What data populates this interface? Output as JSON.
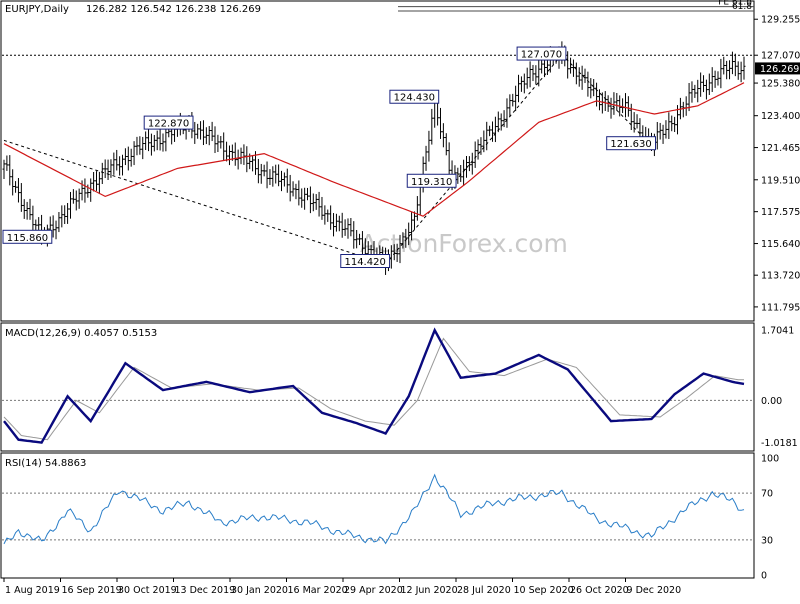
{
  "chart_data": [
    {
      "type": "line",
      "panel": "price",
      "title": "EURJPY,Daily",
      "ohlc_label": "126.282 126.542 126.238 126.269",
      "watermark": "ActionForex.com",
      "ylim": [
        111.0,
        130.3
      ],
      "y_ticks": [
        "129.255",
        "127.070",
        "125.380",
        "123.400",
        "121.465",
        "119.510",
        "117.575",
        "115.640",
        "113.720",
        "111.795"
      ],
      "x_ticks": [
        "1 Aug 2019",
        "16 Sep 2019",
        "30 Oct 2019",
        "13 Dec 2019",
        "30 Jan 2020",
        "16 Mar 2020",
        "29 Apr 2020",
        "12 Jun 2020",
        "28 Jul 2020",
        "10 Sep 2020",
        "26 Oct 2020",
        "9 Dec 2020"
      ],
      "current_price_label": "126.269",
      "resistance": {
        "value": 127.07,
        "label": "127.070"
      },
      "fib_levels": [
        {
          "value": 130.02,
          "label": "FE 61.8"
        },
        {
          "value": 129.75,
          "label": "61.8"
        }
      ],
      "pivot_labels": [
        {
          "bar": 13,
          "value": 116.02,
          "label": "115.860"
        },
        {
          "bar": 64,
          "value": 122.95,
          "label": "122.870"
        },
        {
          "bar": 132,
          "value": 114.55,
          "label": "114.420"
        },
        {
          "bar": 149,
          "value": 124.52,
          "label": "124.430"
        },
        {
          "bar": 155,
          "value": 119.42,
          "label": "119.310"
        },
        {
          "bar": 193,
          "value": 127.14,
          "label": "127.070"
        },
        {
          "bar": 224,
          "value": 121.7,
          "label": "121.630"
        }
      ],
      "price_path": [
        [
          0,
          120.3
        ],
        [
          13,
          116.0
        ],
        [
          30,
          119.3
        ],
        [
          45,
          121.3
        ],
        [
          64,
          122.9
        ],
        [
          80,
          121.0
        ],
        [
          100,
          119.0
        ],
        [
          118,
          116.5
        ],
        [
          132,
          114.4
        ],
        [
          142,
          117.0
        ],
        [
          149,
          124.4
        ],
        [
          155,
          119.3
        ],
        [
          170,
          122.8
        ],
        [
          182,
          126.0
        ],
        [
          193,
          127.1
        ],
        [
          205,
          124.5
        ],
        [
          215,
          123.8
        ],
        [
          224,
          121.6
        ],
        [
          232,
          123.3
        ],
        [
          240,
          125.1
        ],
        [
          252,
          126.4
        ],
        [
          256,
          126.3
        ]
      ],
      "ma_path": [
        [
          0,
          121.7
        ],
        [
          35,
          118.5
        ],
        [
          60,
          120.2
        ],
        [
          90,
          121.1
        ],
        [
          115,
          119.3
        ],
        [
          145,
          117.3
        ],
        [
          160,
          119.3
        ],
        [
          185,
          123.0
        ],
        [
          205,
          124.3
        ],
        [
          225,
          123.5
        ],
        [
          240,
          124.0
        ],
        [
          256,
          125.4
        ]
      ],
      "trendlines": [
        {
          "from": [
            0,
            121.9
          ],
          "to": [
            132,
            114.4
          ]
        },
        {
          "from": [
            132,
            114.4
          ],
          "to": [
            193,
            127.1
          ]
        },
        {
          "from": [
            193,
            127.1
          ],
          "to": [
            224,
            121.6
          ]
        }
      ]
    },
    {
      "type": "line",
      "panel": "macd",
      "title": "MACD(12,26,9) 0.4057 0.5153",
      "ylim": [
        -1.2,
        1.85
      ],
      "y_ticks": [
        "1.7041",
        "0.00",
        "-1.0181"
      ],
      "series": [
        {
          "name": "MACD",
          "color": "#0a0a7e",
          "values": [
            [
              0,
              -0.5
            ],
            [
              5,
              -0.95
            ],
            [
              13,
              -1.02
            ],
            [
              22,
              0.1
            ],
            [
              30,
              -0.5
            ],
            [
              42,
              0.9
            ],
            [
              55,
              0.25
            ],
            [
              70,
              0.45
            ],
            [
              85,
              0.2
            ],
            [
              100,
              0.35
            ],
            [
              110,
              -0.3
            ],
            [
              122,
              -0.55
            ],
            [
              132,
              -0.8
            ],
            [
              140,
              0.1
            ],
            [
              149,
              1.7
            ],
            [
              158,
              0.55
            ],
            [
              170,
              0.65
            ],
            [
              185,
              1.1
            ],
            [
              195,
              0.75
            ],
            [
              210,
              -0.5
            ],
            [
              224,
              -0.45
            ],
            [
              232,
              0.15
            ],
            [
              242,
              0.65
            ],
            [
              252,
              0.45
            ],
            [
              256,
              0.4
            ]
          ]
        },
        {
          "name": "Signal",
          "color": "#9a9a9a",
          "values": [
            [
              0,
              -0.4
            ],
            [
              6,
              -0.85
            ],
            [
              15,
              -0.95
            ],
            [
              25,
              0.0
            ],
            [
              33,
              -0.3
            ],
            [
              45,
              0.8
            ],
            [
              58,
              0.3
            ],
            [
              72,
              0.4
            ],
            [
              88,
              0.25
            ],
            [
              102,
              0.3
            ],
            [
              113,
              -0.2
            ],
            [
              125,
              -0.5
            ],
            [
              135,
              -0.6
            ],
            [
              143,
              0.0
            ],
            [
              152,
              1.5
            ],
            [
              161,
              0.7
            ],
            [
              173,
              0.6
            ],
            [
              188,
              1.0
            ],
            [
              198,
              0.8
            ],
            [
              213,
              -0.35
            ],
            [
              227,
              -0.4
            ],
            [
              236,
              0.05
            ],
            [
              246,
              0.6
            ],
            [
              254,
              0.5
            ],
            [
              256,
              0.5
            ]
          ]
        }
      ]
    },
    {
      "type": "line",
      "panel": "rsi",
      "title": "RSI(14) 54.8863",
      "ylim": [
        0,
        100
      ],
      "y_ticks": [
        "100",
        "70",
        "30",
        "0"
      ],
      "series": [
        {
          "name": "RSI",
          "color": "#2a7ec8",
          "values": [
            [
              0,
              25
            ],
            [
              5,
              38
            ],
            [
              13,
              28
            ],
            [
              22,
              55
            ],
            [
              30,
              38
            ],
            [
              40,
              73
            ],
            [
              55,
              55
            ],
            [
              64,
              62
            ],
            [
              75,
              45
            ],
            [
              90,
              50
            ],
            [
              105,
              45
            ],
            [
              118,
              35
            ],
            [
              132,
              28
            ],
            [
              142,
              55
            ],
            [
              149,
              85
            ],
            [
              158,
              52
            ],
            [
              170,
              62
            ],
            [
              185,
              68
            ],
            [
              193,
              70
            ],
            [
              205,
              48
            ],
            [
              215,
              40
            ],
            [
              224,
              33
            ],
            [
              235,
              55
            ],
            [
              245,
              70
            ],
            [
              252,
              63
            ],
            [
              256,
              55
            ]
          ]
        }
      ]
    }
  ]
}
